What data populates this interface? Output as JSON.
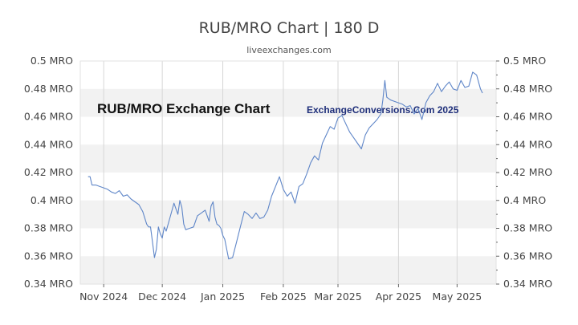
{
  "title": "RUB/MRO Chart | 180 D",
  "subtitle": "liveexchanges.com",
  "colors": {
    "line": "#5f86c8",
    "band": "#f2f2f2",
    "grid": "#d6d6d6",
    "axis": "#666666"
  },
  "chart_data": {
    "type": "line",
    "ylim": [
      0.34,
      0.5
    ],
    "y_ticks": [
      0.34,
      0.36,
      0.38,
      0.4,
      0.42,
      0.44,
      0.46,
      0.48,
      0.5
    ],
    "y_tick_labels": [
      "0.34 MRO",
      "0.36 MRO",
      "0.38 MRO",
      "0.4 MRO",
      "0.42 MRO",
      "0.44 MRO",
      "0.46 MRO",
      "0.48 MRO",
      "0.5 MRO"
    ],
    "x_range": [
      "2024-10-20",
      "2025-05-21"
    ],
    "x_ticks": [
      {
        "date": "2024-11-01",
        "label": "Nov 2024"
      },
      {
        "date": "2024-12-01",
        "label": "Dec 2024"
      },
      {
        "date": "2025-01-01",
        "label": "Jan 2025"
      },
      {
        "date": "2025-02-01",
        "label": "Feb 2025"
      },
      {
        "date": "2025-03-01",
        "label": "Mar 2025"
      },
      {
        "date": "2025-04-01",
        "label": "Apr 2025"
      },
      {
        "date": "2025-05-01",
        "label": "May 2025"
      }
    ],
    "grid": true,
    "annotations": [
      "RUB/MRO Exchange Chart",
      "ExchangeConversions.Com 2025"
    ],
    "series": [
      {
        "x": [
          "2024-10-24",
          "2024-10-25",
          "2024-10-26",
          "2024-10-28",
          "2024-10-30",
          "2024-11-01",
          "2024-11-03",
          "2024-11-05",
          "2024-11-07",
          "2024-11-09",
          "2024-11-11",
          "2024-11-13",
          "2024-11-15",
          "2024-11-17",
          "2024-11-19",
          "2024-11-21",
          "2024-11-23",
          "2024-11-24",
          "2024-11-25",
          "2024-11-26",
          "2024-11-27",
          "2024-11-28",
          "2024-11-29",
          "2024-11-30",
          "2024-12-01",
          "2024-12-02",
          "2024-12-03",
          "2024-12-05",
          "2024-12-07",
          "2024-12-09",
          "2024-12-10",
          "2024-12-11",
          "2024-12-12",
          "2024-12-13",
          "2024-12-15",
          "2024-12-17",
          "2024-12-19",
          "2024-12-21",
          "2024-12-23",
          "2024-12-25",
          "2024-12-26",
          "2024-12-27",
          "2024-12-28",
          "2024-12-29",
          "2024-12-30",
          "2024-12-31",
          "2025-01-01",
          "2025-01-02",
          "2025-01-04",
          "2025-01-06",
          "2025-01-08",
          "2025-01-10",
          "2025-01-12",
          "2025-01-14",
          "2025-01-16",
          "2025-01-18",
          "2025-01-20",
          "2025-01-22",
          "2025-01-24",
          "2025-01-26",
          "2025-01-28",
          "2025-01-30",
          "2025-02-01",
          "2025-02-03",
          "2025-02-05",
          "2025-02-07",
          "2025-02-09",
          "2025-02-11",
          "2025-02-13",
          "2025-02-15",
          "2025-02-17",
          "2025-02-19",
          "2025-02-21",
          "2025-02-23",
          "2025-02-25",
          "2025-02-27",
          "2025-03-01",
          "2025-03-03",
          "2025-03-05",
          "2025-03-07",
          "2025-03-09",
          "2025-03-11",
          "2025-03-13",
          "2025-03-15",
          "2025-03-17",
          "2025-03-19",
          "2025-03-21",
          "2025-03-23",
          "2025-03-24",
          "2025-03-25",
          "2025-03-26",
          "2025-03-28",
          "2025-03-30",
          "2025-04-01",
          "2025-04-03",
          "2025-04-05",
          "2025-04-07",
          "2025-04-09",
          "2025-04-11",
          "2025-04-13",
          "2025-04-15",
          "2025-04-17",
          "2025-04-19",
          "2025-04-21",
          "2025-04-23",
          "2025-04-25",
          "2025-04-27",
          "2025-04-29",
          "2025-05-01",
          "2025-05-03",
          "2025-05-05",
          "2025-05-07",
          "2025-05-09",
          "2025-05-11",
          "2025-05-13",
          "2025-05-14"
        ],
        "y": [
          0.417,
          0.417,
          0.411,
          0.411,
          0.41,
          0.409,
          0.408,
          0.406,
          0.405,
          0.407,
          0.403,
          0.404,
          0.401,
          0.399,
          0.397,
          0.392,
          0.383,
          0.381,
          0.381,
          0.37,
          0.359,
          0.365,
          0.381,
          0.376,
          0.373,
          0.381,
          0.378,
          0.388,
          0.398,
          0.39,
          0.4,
          0.395,
          0.383,
          0.379,
          0.38,
          0.381,
          0.389,
          0.391,
          0.393,
          0.385,
          0.396,
          0.399,
          0.388,
          0.383,
          0.382,
          0.38,
          0.375,
          0.372,
          0.358,
          0.359,
          0.37,
          0.381,
          0.392,
          0.39,
          0.387,
          0.391,
          0.387,
          0.388,
          0.393,
          0.403,
          0.41,
          0.417,
          0.408,
          0.403,
          0.406,
          0.398,
          0.41,
          0.412,
          0.419,
          0.427,
          0.432,
          0.429,
          0.441,
          0.447,
          0.453,
          0.451,
          0.459,
          0.461,
          0.455,
          0.449,
          0.445,
          0.441,
          0.437,
          0.447,
          0.452,
          0.455,
          0.458,
          0.462,
          0.472,
          0.486,
          0.474,
          0.472,
          0.471,
          0.47,
          0.469,
          0.467,
          0.468,
          0.462,
          0.466,
          0.458,
          0.47,
          0.475,
          0.478,
          0.484,
          0.478,
          0.482,
          0.485,
          0.48,
          0.479,
          0.486,
          0.481,
          0.482,
          0.492,
          0.49,
          0.48,
          0.477
        ]
      }
    ]
  }
}
